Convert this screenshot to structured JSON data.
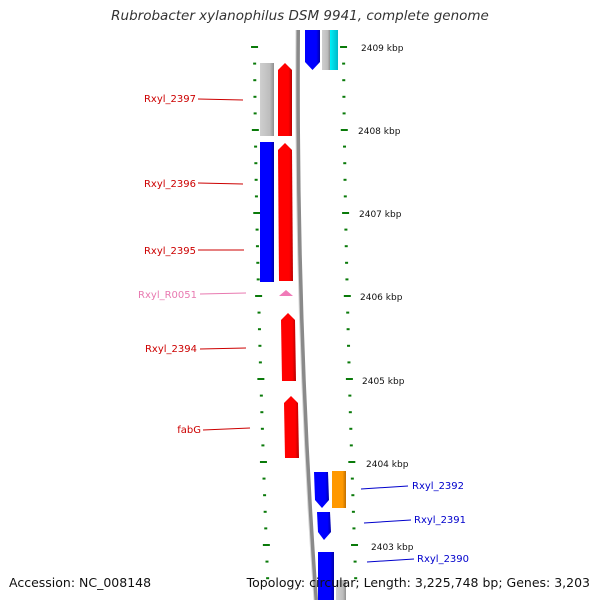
{
  "title": "Rubrobacter xylanophilus DSM 9941, complete genome",
  "accession": "Accession: NC_008148",
  "topology": "Topology: circular; Length: 3,225,748 bp; Genes: 3,203",
  "colors": {
    "red": "#ff0000",
    "blue": "#0000ff",
    "gray": "#bdbdbd",
    "pink": "#f07ab8",
    "cyan": "#00e5ee",
    "orange": "#ff9900",
    "tick": "#0a7a0a",
    "backbone": "#8a8a8a",
    "label_red": "#cc0000",
    "label_blue": "#0000cc",
    "label_pink": "#e879b0"
  },
  "ruler": [
    {
      "label": "2409 kbp"
    },
    {
      "label": "2408 kbp"
    },
    {
      "label": "2407 kbp"
    },
    {
      "label": "2406 kbp"
    },
    {
      "label": "2405 kbp"
    },
    {
      "label": "2404 kbp"
    },
    {
      "label": "2403 kbp"
    }
  ],
  "gene_labels": [
    {
      "name": "Rxyl_2397",
      "color": "label_red"
    },
    {
      "name": "Rxyl_2396",
      "color": "label_red"
    },
    {
      "name": "Rxyl_2395",
      "color": "label_red"
    },
    {
      "name": "Rxyl_R0051",
      "color": "label_pink"
    },
    {
      "name": "Rxyl_2394",
      "color": "label_red"
    },
    {
      "name": "fabG",
      "color": "label_red"
    },
    {
      "name": "Rxyl_2392",
      "color": "label_blue"
    },
    {
      "name": "Rxyl_2391",
      "color": "label_blue"
    },
    {
      "name": "Rxyl_2390",
      "color": "label_blue"
    }
  ]
}
